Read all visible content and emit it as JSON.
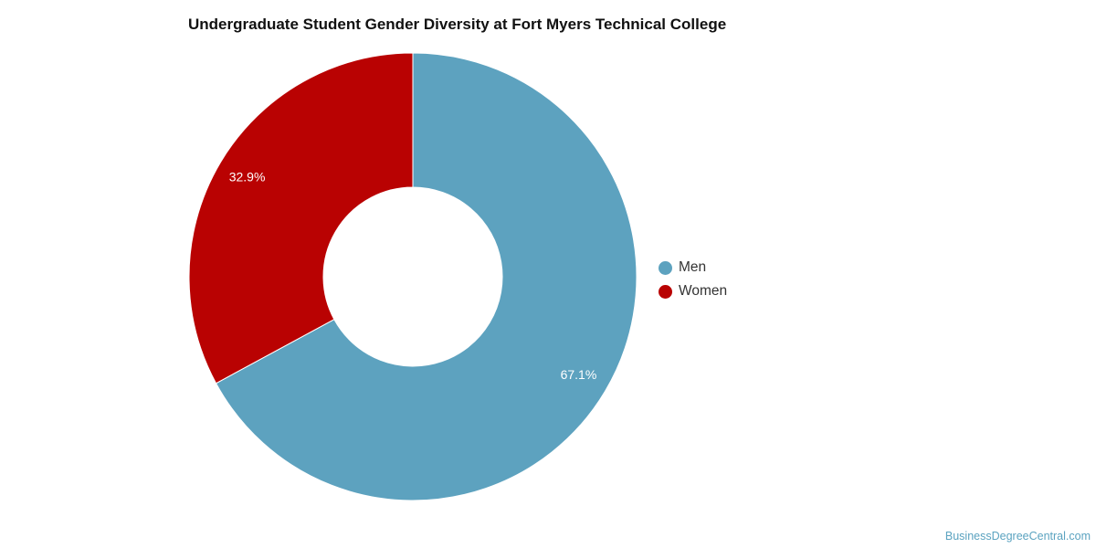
{
  "chart_data": {
    "type": "pie",
    "title": "Undergraduate Student Gender Diversity at Fort Myers Technical College",
    "donut": true,
    "categories": [
      "Men",
      "Women"
    ],
    "values": [
      67.1,
      32.9
    ],
    "data_labels": [
      "67.1%",
      "32.9%"
    ],
    "colors": [
      "#5da2bf",
      "#b90202"
    ],
    "legend_position": "right"
  },
  "watermark": "BusinessDegreeCentral.com"
}
